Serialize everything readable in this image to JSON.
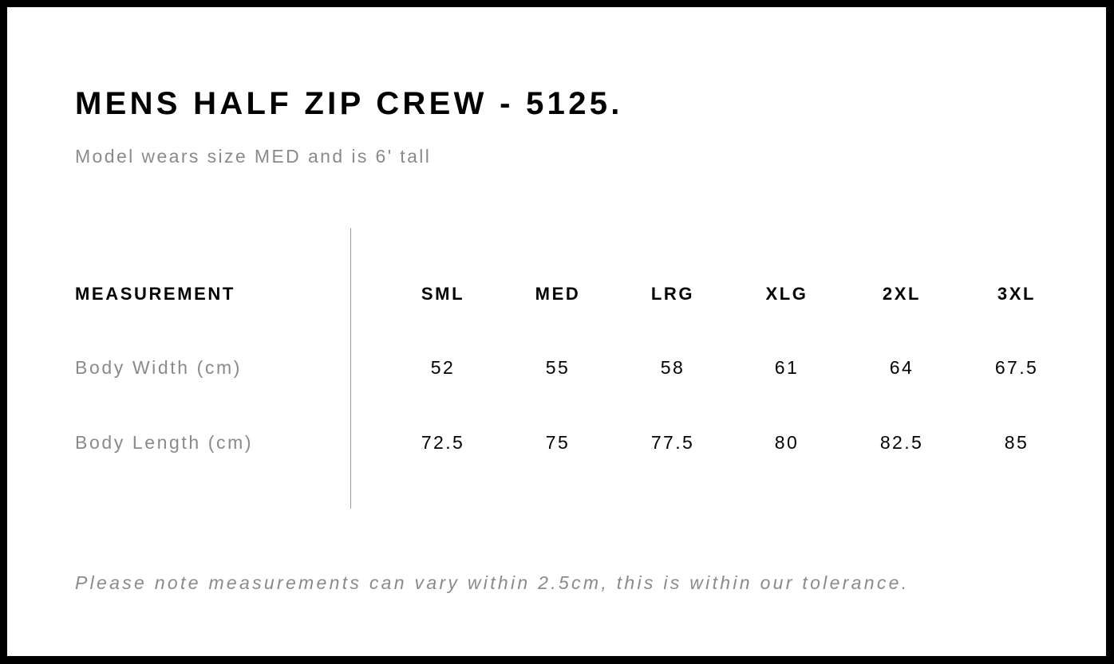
{
  "title": "MENS HALF ZIP CREW - 5125.",
  "subtitle": "Model wears size MED and is 6' tall",
  "table": {
    "header_label": "MEASUREMENT",
    "sizes": [
      "SML",
      "MED",
      "LRG",
      "XLG",
      "2XL",
      "3XL"
    ],
    "rows": [
      {
        "label": "Body Width (cm)",
        "values": [
          "52",
          "55",
          "58",
          "61",
          "64",
          "67.5"
        ]
      },
      {
        "label": "Body Length (cm)",
        "values": [
          "72.5",
          "75",
          "77.5",
          "80",
          "82.5",
          "85"
        ]
      }
    ]
  },
  "note": "Please note measurements can vary within 2.5cm, this is within our tolerance."
}
